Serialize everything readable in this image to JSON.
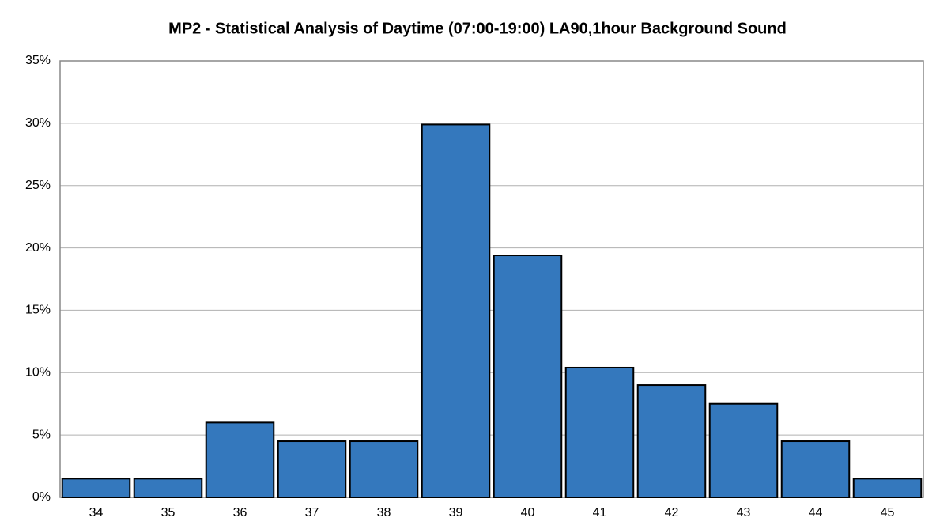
{
  "chart_data": {
    "type": "bar",
    "title": "MP2 - Statistical Analysis of Daytime (07:00-19:00) LA90,1hour Background Sound",
    "categories": [
      "34",
      "35",
      "36",
      "37",
      "38",
      "39",
      "40",
      "41",
      "42",
      "43",
      "44",
      "45"
    ],
    "values": [
      1.5,
      1.5,
      6.0,
      4.5,
      4.5,
      29.9,
      19.4,
      10.4,
      9.0,
      7.5,
      4.5,
      1.5
    ],
    "color": "#3478bd",
    "ylim": [
      0,
      35
    ],
    "yticks": [
      {
        "value": 0,
        "label": "0%"
      },
      {
        "value": 5,
        "label": "5%"
      },
      {
        "value": 10,
        "label": "10%"
      },
      {
        "value": 15,
        "label": "15%"
      },
      {
        "value": 20,
        "label": "20%"
      },
      {
        "value": 25,
        "label": "25%"
      },
      {
        "value": 30,
        "label": "30%"
      },
      {
        "value": 35,
        "label": "35%"
      }
    ],
    "grid": true
  }
}
